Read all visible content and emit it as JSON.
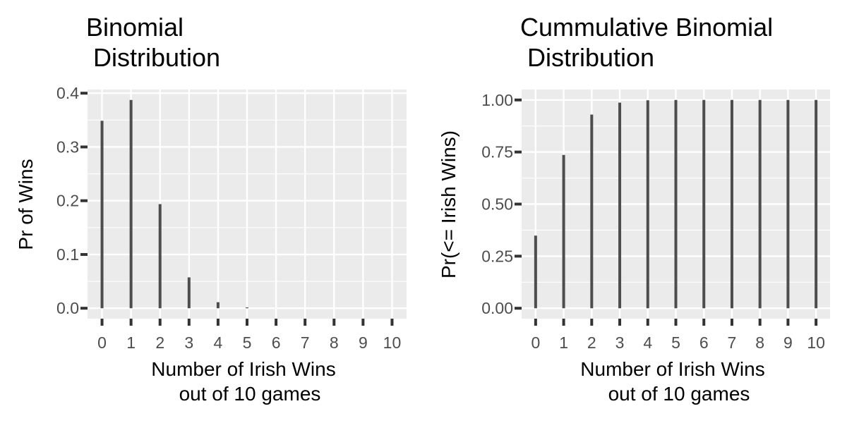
{
  "chart_data": [
    {
      "type": "bar",
      "title": [
        "Binomial",
        " Distribution"
      ],
      "xlabel": [
        "Number of Irish Wins",
        "out of 10 games"
      ],
      "ylabel": "Pr of Wins",
      "categories": [
        "0",
        "1",
        "2",
        "3",
        "4",
        "5",
        "6",
        "7",
        "8",
        "9",
        "10"
      ],
      "values": [
        0.3487,
        0.3874,
        0.1937,
        0.0574,
        0.0112,
        0.0015,
        0.0001,
        0.0,
        0.0,
        0.0,
        0.0
      ],
      "yticks": [
        "0.0",
        "0.1",
        "0.2",
        "0.3",
        "0.4"
      ],
      "ytick_values": [
        0,
        0.1,
        0.2,
        0.3,
        0.4
      ],
      "ylim": [
        -0.0194,
        0.4068
      ],
      "xlim": [
        -0.5,
        10.5
      ],
      "grid": true,
      "colors": {
        "panel": "#ebebeb",
        "grid": "#ffffff",
        "bar": "#4d4d4d",
        "tick": "#333333"
      }
    },
    {
      "type": "bar",
      "title": [
        "Cummulative Binomial",
        " Distribution"
      ],
      "xlabel": [
        "Number of Irish Wins",
        "out of 10 games"
      ],
      "ylabel": "Pr(<= Irish Wins)",
      "categories": [
        "0",
        "1",
        "2",
        "3",
        "4",
        "5",
        "6",
        "7",
        "8",
        "9",
        "10"
      ],
      "values": [
        0.3487,
        0.7361,
        0.9298,
        0.9872,
        0.9984,
        0.9999,
        1.0,
        1.0,
        1.0,
        1.0,
        1.0
      ],
      "yticks": [
        "0.00",
        "0.25",
        "0.50",
        "0.75",
        "1.00"
      ],
      "ytick_values": [
        0,
        0.25,
        0.5,
        0.75,
        1.0
      ],
      "ylim": [
        -0.05,
        1.05
      ],
      "xlim": [
        -0.5,
        10.5
      ],
      "grid": true,
      "colors": {
        "panel": "#ebebeb",
        "grid": "#ffffff",
        "bar": "#4d4d4d",
        "tick": "#333333"
      }
    }
  ]
}
